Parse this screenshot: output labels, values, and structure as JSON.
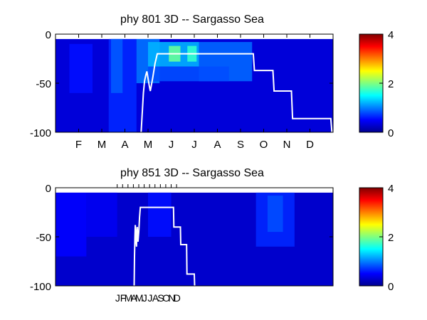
{
  "chart_data": [
    {
      "type": "heatmap",
      "title": "phy  801 3D   -- Sargasso Sea",
      "ylim": [
        -100,
        0
      ],
      "y_ticks": [
        "0",
        "-50",
        "-100"
      ],
      "y_tick_values": [
        0,
        -50,
        -100
      ],
      "x_ticks": [
        "F",
        "M",
        "A",
        "M",
        "J",
        "J",
        "A",
        "S",
        "O",
        "N",
        "D"
      ],
      "x_tick_values": [
        1,
        2,
        3,
        4,
        5,
        6,
        7,
        8,
        9,
        10,
        11
      ],
      "x_range": [
        0,
        12
      ],
      "colorbar": {
        "ticks": [
          "0",
          "2",
          "4"
        ],
        "values": [
          0,
          2,
          4
        ],
        "range": [
          0,
          4
        ],
        "colormap": "jet"
      },
      "background_value": 0.35,
      "patches": [
        {
          "x0": 2.3,
          "x1": 3.5,
          "y0": -5,
          "y1": -100,
          "v": 0.65
        },
        {
          "x0": 2.4,
          "x1": 2.9,
          "y0": -5,
          "y1": -60,
          "v": 0.85
        },
        {
          "x0": 3.5,
          "x1": 4.5,
          "y0": -5,
          "y1": -50,
          "v": 0.95
        },
        {
          "x0": 4.0,
          "x1": 6.2,
          "y0": -8,
          "y1": -33,
          "v": 1.2
        },
        {
          "x0": 4.9,
          "x1": 5.4,
          "y0": -12,
          "y1": -28,
          "v": 1.9
        },
        {
          "x0": 5.7,
          "x1": 6.1,
          "y0": -12,
          "y1": -28,
          "v": 1.7
        },
        {
          "x0": 6.2,
          "x1": 8.5,
          "y0": -8,
          "y1": -48,
          "v": 0.9
        },
        {
          "x0": 4.0,
          "x1": 7.5,
          "y0": -33,
          "y1": -48,
          "v": 0.8
        },
        {
          "x0": 0.6,
          "x1": 1.6,
          "y0": -10,
          "y1": -60,
          "v": 0.55
        }
      ],
      "line": {
        "color": "#ffffff",
        "x": [
          3.7,
          3.75,
          3.8,
          3.85,
          3.9,
          3.95,
          4.0,
          4.05,
          4.1,
          4.2,
          4.3,
          4.4,
          8.55,
          8.6,
          9.4,
          9.45,
          10.2,
          10.25,
          11.0,
          11.05,
          11.9,
          11.95
        ],
        "y": [
          -100,
          -80,
          -60,
          -48,
          -42,
          -38,
          -45,
          -52,
          -58,
          -45,
          -30,
          -20,
          -20,
          -37,
          -37,
          -58,
          -58,
          -86,
          -86,
          -86,
          -86,
          -100
        ]
      }
    },
    {
      "type": "heatmap",
      "title": "phy  851 3D   -- Sargasso Sea",
      "ylim": [
        -100,
        0
      ],
      "y_ticks": [
        "0",
        "-50",
        "-100"
      ],
      "y_tick_values": [
        0,
        -50,
        -100
      ],
      "x_ticks": [
        "J",
        "F",
        "M",
        "A",
        "M",
        "J",
        "J",
        "A",
        "S",
        "O",
        "N",
        "D"
      ],
      "x_range": [
        0,
        36
      ],
      "tick_months_x": [
        8.0,
        8.7,
        9.4,
        10.1,
        10.8,
        11.5,
        12.2,
        12.9,
        13.6,
        14.3,
        15.0,
        15.7
      ],
      "colorbar": {
        "ticks": [
          "0",
          "2",
          "4"
        ],
        "values": [
          0,
          2,
          4
        ],
        "range": [
          0,
          4
        ],
        "colormap": "jet"
      },
      "background_value": 0.3,
      "patches": [
        {
          "x0": 0.0,
          "x1": 4.0,
          "y0": -5,
          "y1": -70,
          "v": 0.5
        },
        {
          "x0": 4.0,
          "x1": 8.0,
          "y0": -5,
          "y1": -50,
          "v": 0.45
        },
        {
          "x0": 12.0,
          "x1": 15.0,
          "y0": -5,
          "y1": -50,
          "v": 0.55
        },
        {
          "x0": 26.0,
          "x1": 31.0,
          "y0": -5,
          "y1": -60,
          "v": 0.65
        },
        {
          "x0": 27.5,
          "x1": 29.5,
          "y0": -8,
          "y1": -45,
          "v": 0.8
        }
      ],
      "line": {
        "color": "#ffffff",
        "x": [
          10.2,
          10.25,
          10.3,
          10.35,
          10.4,
          10.45,
          10.5,
          10.55,
          10.6,
          10.7,
          10.8,
          10.9,
          11.0,
          15.3,
          15.35,
          16.2,
          16.25,
          17.0,
          17.05,
          18.0,
          18.05
        ],
        "y": [
          -100,
          -70,
          -50,
          -38,
          -45,
          -55,
          -60,
          -48,
          -40,
          -55,
          -45,
          -30,
          -20,
          -20,
          -40,
          -40,
          -58,
          -58,
          -88,
          -88,
          -100
        ]
      }
    }
  ]
}
